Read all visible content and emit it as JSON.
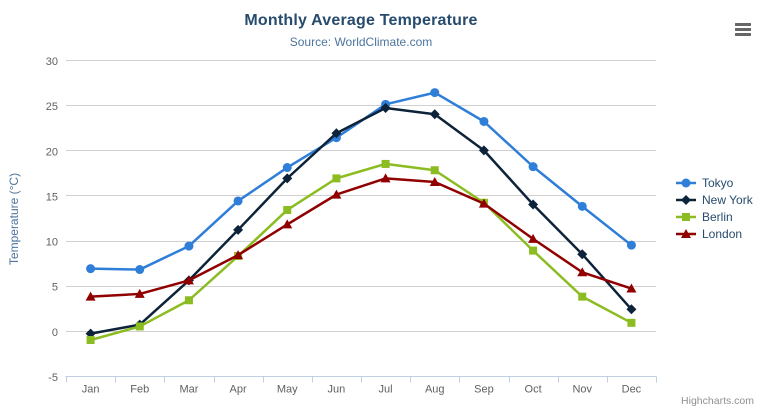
{
  "chart_data": {
    "type": "line",
    "title": "Monthly Average Temperature",
    "subtitle": "Source: WorldClimate.com",
    "ylabel": "Temperature (°C)",
    "xlabel": "",
    "ylim": [
      -5,
      30
    ],
    "ytick_step": 5,
    "grid": true,
    "legend_position": "right",
    "categories": [
      "Jan",
      "Feb",
      "Mar",
      "Apr",
      "May",
      "Jun",
      "Jul",
      "Aug",
      "Sep",
      "Oct",
      "Nov",
      "Dec"
    ],
    "series": [
      {
        "name": "Tokyo",
        "color": "#2f7ed8",
        "marker": "circle",
        "values": [
          7.0,
          6.9,
          9.5,
          14.5,
          18.2,
          21.5,
          25.2,
          26.5,
          23.3,
          18.3,
          13.9,
          9.6
        ]
      },
      {
        "name": "New York",
        "color": "#0d233a",
        "marker": "diamond",
        "values": [
          -0.2,
          0.8,
          5.7,
          11.3,
          17.0,
          22.0,
          24.8,
          24.1,
          20.1,
          14.1,
          8.6,
          2.5
        ]
      },
      {
        "name": "Berlin",
        "color": "#8bbc21",
        "marker": "square",
        "values": [
          -0.9,
          0.6,
          3.5,
          8.4,
          13.5,
          17.0,
          18.6,
          17.9,
          14.3,
          9.0,
          3.9,
          1.0
        ]
      },
      {
        "name": "London",
        "color": "#910000",
        "marker": "triangle",
        "values": [
          3.9,
          4.2,
          5.7,
          8.5,
          11.9,
          15.2,
          17.0,
          16.6,
          14.2,
          10.3,
          6.6,
          4.8
        ]
      }
    ]
  },
  "credits": "Highcharts.com",
  "icons": {
    "menu": "hamburger-icon"
  },
  "colors": {
    "title": "#274b6d",
    "subtitle": "#4d759e",
    "y_axis_title": "#4d759e",
    "axis_labels": "#606060",
    "axis_line": "#c0d0e0",
    "gridline": "#d0d0d0",
    "legend_text": "#274b6d",
    "credits": "#909090",
    "menu_icon": "#666666",
    "background": "#ffffff"
  }
}
